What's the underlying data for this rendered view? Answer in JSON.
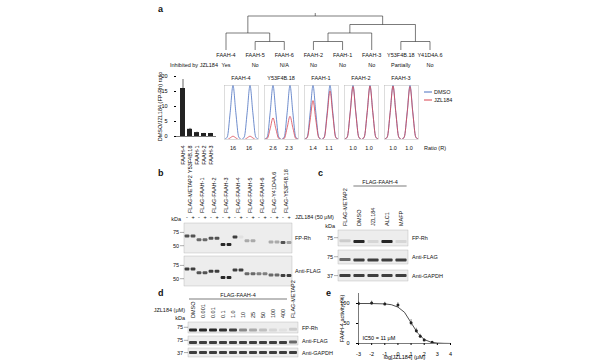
{
  "panel_labels": [
    "a",
    "b",
    "c",
    "d",
    "e"
  ],
  "dendrogram": {
    "leaves": [
      "FAAH-4",
      "FAAH-5",
      "FAAH-6",
      "FAAH-2",
      "FAAH-1",
      "FAAH-3",
      "Y53F4B.18",
      "Y41D4A.6"
    ],
    "tree": [
      [
        0,
        [
          1,
          2
        ]
      ],
      [
        [
          [
            3,
            4
          ],
          5
        ],
        [
          6,
          7
        ]
      ]
    ],
    "row_label": "Inhibited by JZL184",
    "inhibited": [
      "Yes",
      "No",
      "N/A",
      "No",
      "No",
      "No",
      "Partially",
      "No"
    ]
  },
  "chart_data": [
    {
      "type": "bar",
      "ylabel": "DMSO/JZL184 (FP-Rh) ratio",
      "categories": [
        "FAAH-4",
        "Y53F4B.18",
        "FAAH-1",
        "FAAH-2",
        "FAAH-3"
      ],
      "values": [
        16,
        2.4,
        1.3,
        1.0,
        1.0
      ],
      "errors": [
        3,
        0.3,
        0.15,
        0.05,
        0.05
      ],
      "color": "#222222",
      "ylim": [
        0,
        20
      ],
      "yticks": [
        0,
        5,
        10,
        15,
        20
      ]
    },
    {
      "type": "line",
      "title": "FAAH-4",
      "x": [
        0,
        1,
        2,
        3,
        4,
        5,
        6,
        7,
        8,
        9,
        10,
        11,
        12
      ],
      "tick_labels": false,
      "ratios": [
        16,
        16
      ],
      "series": [
        {
          "name": "DMSO",
          "color": "#4a70c0",
          "values": [
            0,
            0.05,
            0.5,
            1,
            0.5,
            0.05,
            0,
            0.05,
            0.5,
            1,
            0.5,
            0.05,
            0
          ]
        },
        {
          "name": "JZL184",
          "color": "#d9434f",
          "values": [
            0,
            0,
            0.03,
            0.06,
            0.03,
            0,
            0,
            0,
            0.03,
            0.06,
            0.03,
            0,
            0
          ]
        }
      ]
    },
    {
      "type": "line",
      "title": "Y53F4B.18",
      "x": [
        0,
        1,
        2,
        3,
        4,
        5,
        6,
        7,
        8,
        9,
        10,
        11,
        12
      ],
      "tick_labels": false,
      "ratios": [
        2.6,
        2.3
      ],
      "series": [
        {
          "name": "DMSO",
          "color": "#4a70c0",
          "values": [
            0,
            0.05,
            0.5,
            1,
            0.5,
            0.05,
            0,
            0.05,
            0.5,
            1,
            0.5,
            0.05,
            0
          ]
        },
        {
          "name": "JZL184",
          "color": "#d9434f",
          "values": [
            0,
            0.02,
            0.2,
            0.4,
            0.2,
            0.02,
            0,
            0.02,
            0.22,
            0.43,
            0.22,
            0.02,
            0
          ]
        }
      ]
    },
    {
      "type": "line",
      "title": "FAAH-1",
      "x": [
        0,
        1,
        2,
        3,
        4,
        5,
        6,
        7,
        8,
        9,
        10,
        11,
        12
      ],
      "tick_labels": false,
      "ratios": [
        1.4,
        1.1
      ],
      "series": [
        {
          "name": "DMSO",
          "color": "#4a70c0",
          "values": [
            0,
            0.05,
            0.5,
            1,
            0.5,
            0.05,
            0,
            0.05,
            0.5,
            1,
            0.5,
            0.05,
            0
          ]
        },
        {
          "name": "JZL184",
          "color": "#d9434f",
          "values": [
            0,
            0.04,
            0.36,
            0.72,
            0.36,
            0.04,
            0,
            0.04,
            0.45,
            0.9,
            0.45,
            0.04,
            0
          ]
        }
      ]
    },
    {
      "type": "line",
      "title": "FAAH-2",
      "x": [
        0,
        1,
        2,
        3,
        4,
        5,
        6,
        7,
        8,
        9,
        10,
        11,
        12
      ],
      "tick_labels": false,
      "ratios": [
        {
          "value": 1,
          "label": "1.0"
        },
        {
          "value": 1,
          "label": "1.0"
        }
      ],
      "series": [
        {
          "name": "DMSO",
          "color": "#4a70c0",
          "values": [
            0,
            0.05,
            0.5,
            1,
            0.5,
            0.05,
            0,
            0.05,
            0.5,
            1,
            0.5,
            0.05,
            0
          ]
        },
        {
          "name": "JZL184",
          "color": "#d9434f",
          "values": [
            0,
            0.05,
            0.49,
            0.98,
            0.49,
            0.05,
            0,
            0.05,
            0.5,
            0.99,
            0.5,
            0.05,
            0
          ]
        }
      ]
    },
    {
      "type": "line",
      "title": "FAAH-3",
      "x": [
        0,
        1,
        2,
        3,
        4,
        5,
        6,
        7,
        8,
        9,
        10,
        11,
        12
      ],
      "tick_labels": false,
      "ratios": [
        {
          "value": 1,
          "label": "1.0"
        },
        {
          "value": 1,
          "label": "1.0"
        }
      ],
      "legend": "right",
      "annotation": "Ratio (R)",
      "series": [
        {
          "name": "DMSO",
          "color": "#4a70c0",
          "values": [
            0,
            0.05,
            0.5,
            1,
            0.5,
            0.05,
            0,
            0.05,
            0.5,
            1,
            0.5,
            0.05,
            0
          ]
        },
        {
          "name": "JZL184",
          "color": "#d9434f",
          "values": [
            0,
            0.05,
            0.5,
            0.99,
            0.5,
            0.05,
            0,
            0.05,
            0.49,
            0.98,
            0.49,
            0.05,
            0
          ]
        }
      ]
    },
    {
      "type": "scatter",
      "xlabel": "log[JZL184] (μM)",
      "ylabel": "FAAH-4 activity (%)",
      "color": "#222222",
      "annotation": "IC50 = 11 μM",
      "x": [
        -3,
        -2,
        -1,
        0,
        1,
        1.4,
        1.7,
        2,
        2.6
      ],
      "values": [
        100,
        101,
        99,
        96,
        52,
        32,
        18,
        9,
        3
      ],
      "errors": [
        4,
        5,
        4,
        6,
        8,
        6,
        5,
        3,
        2
      ],
      "fit": {
        "x": [
          -3,
          -2,
          -1,
          -0.5,
          0,
          0.5,
          1,
          1.5,
          2,
          2.5,
          3,
          3.5,
          4
        ],
        "values": [
          100,
          99.9,
          99,
          97,
          91,
          78,
          52,
          26,
          10,
          3.5,
          1.1,
          0.4,
          0.1
        ]
      },
      "xlim": [
        -3,
        4
      ],
      "xticks": [
        -3,
        -2,
        -1,
        0,
        1,
        2,
        3,
        4
      ],
      "ylim": [
        0,
        125
      ],
      "yticks": [
        0,
        50,
        100
      ]
    }
  ],
  "blots": [
    {
      "kda_label": "kDa",
      "lane_labels": [
        "FLAG-METAP2",
        "FLAG-FAAH-1",
        "FLAG-FAAH-2",
        "FLAG-FAAH-3",
        "FLAG-FAAH-4",
        "FLAG-FAAH-5",
        "FLAG-FAAH-6",
        "FLAG-Y41D4A.6",
        "FLAG-Y53F4B.18"
      ],
      "treatment": {
        "label": "JZL184 (50 μM)",
        "signs": [
          "-",
          "+",
          "-",
          "+",
          "-",
          "+",
          "-",
          "+",
          "-",
          "+",
          "-",
          "+",
          "-",
          "+",
          "-",
          "+",
          "-",
          "+"
        ]
      },
      "strips": [
        {
          "name": "FP-Rh",
          "kda_range": [
            40,
            100
          ],
          "kda_marks": [
            75,
            50
          ],
          "band_kda": [
            67,
            67,
            60,
            60,
            63,
            63,
            52,
            52,
            65,
            65,
            58,
            58,
            58,
            58,
            56,
            56,
            55,
            55
          ],
          "intensity": [
            0.7,
            0.7,
            0.6,
            0.6,
            0.7,
            0.7,
            0.9,
            0.9,
            0.8,
            0.05,
            0.3,
            0.3,
            0,
            0,
            0.3,
            0.3,
            0.7,
            0.35
          ]
        },
        {
          "name": "Anti-FLAG",
          "kda_range": [
            40,
            100
          ],
          "kda_marks": [
            75,
            50
          ],
          "band_kda": [
            67,
            67,
            60,
            60,
            63,
            63,
            52,
            52,
            65,
            65,
            58,
            58,
            58,
            58,
            56,
            56,
            55,
            55
          ],
          "intensity": [
            0.8,
            0.8,
            0.7,
            0.7,
            0.8,
            0.8,
            0.9,
            0.9,
            0.8,
            0.8,
            0.6,
            0.6,
            0.5,
            0.5,
            0.6,
            0.6,
            0.8,
            0.8
          ]
        }
      ]
    },
    {
      "kda_label": "kDa",
      "lane_labels": [
        "FLAG-METAP2",
        "DMSO",
        "JZL184",
        "ALC1",
        "MAFP"
      ],
      "header": "FLAG-FAAH-4",
      "header_lanes": [
        1,
        4
      ],
      "strips": [
        {
          "name": "FP-Rh",
          "kda_range": [
            55,
            100
          ],
          "kda_marks": [
            75
          ],
          "band_kda": [
            67,
            65,
            65,
            65,
            65
          ],
          "intensity": [
            0.15,
            0.9,
            0.1,
            0.9,
            0.1
          ]
        },
        {
          "name": "Anti-FLAG",
          "kda_range": [
            55,
            100
          ],
          "kda_marks": [
            75
          ],
          "band_kda": [
            67,
            65,
            65,
            65,
            65
          ],
          "intensity": [
            0.6,
            0.8,
            0.8,
            0.8,
            0.8
          ]
        },
        {
          "name": "Anti-GAPDH",
          "kda_range": [
            30,
            46
          ],
          "kda_marks": [
            37
          ],
          "band_kda": [
            37,
            37,
            37,
            37,
            37
          ],
          "intensity": [
            0.8,
            0.8,
            0.8,
            0.8,
            0.8
          ]
        }
      ]
    },
    {
      "kda_label": "kDa",
      "lane_labels": [
        "DMSO",
        "0.001",
        "0.01",
        "0.1",
        "1.0",
        "10",
        "25",
        "50",
        "100",
        "400",
        "FLAG-METAP2"
      ],
      "header": "FLAG-FAAH-4",
      "header_lanes": [
        0,
        9
      ],
      "row_label": "JZL184 (μM)",
      "strips": [
        {
          "name": "FP-Rh",
          "kda_range": [
            55,
            100
          ],
          "kda_marks": [
            75
          ],
          "band_kda": [
            65,
            65,
            65,
            65,
            65,
            65,
            65,
            65,
            65,
            65,
            67
          ],
          "intensity": [
            0.9,
            0.9,
            0.9,
            0.85,
            0.8,
            0.45,
            0.3,
            0.2,
            0.1,
            0.05,
            0.15
          ]
        },
        {
          "name": "Anti-FLAG",
          "kda_range": [
            55,
            100
          ],
          "kda_marks": [
            75
          ],
          "band_kda": [
            65,
            65,
            65,
            65,
            65,
            65,
            65,
            65,
            65,
            65,
            67
          ],
          "intensity": [
            0.8,
            0.8,
            0.8,
            0.8,
            0.8,
            0.8,
            0.8,
            0.8,
            0.8,
            0.8,
            0.6
          ]
        },
        {
          "name": "Anti-GAPDH",
          "kda_range": [
            30,
            46
          ],
          "kda_marks": [
            37
          ],
          "band_kda": [
            37,
            37,
            37,
            37,
            37,
            37,
            37,
            37,
            37,
            37,
            37
          ],
          "intensity": [
            0.8,
            0.8,
            0.8,
            0.8,
            0.8,
            0.8,
            0.8,
            0.8,
            0.8,
            0.8,
            0.8
          ]
        }
      ]
    }
  ]
}
